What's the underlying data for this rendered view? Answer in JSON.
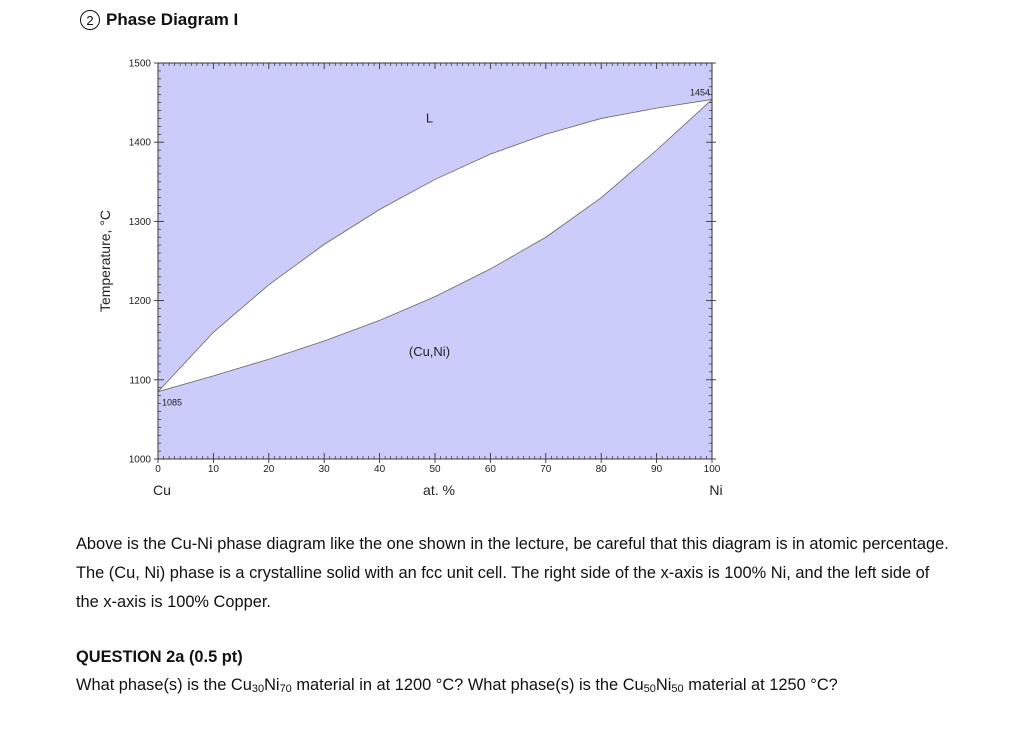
{
  "header": {
    "number": "2",
    "title": "Phase Diagram I"
  },
  "colors": {
    "liquid_region": "#ccccfb",
    "solid_region": "#ccccfb",
    "two_phase_region": "#ffffff",
    "axis": "#333333"
  },
  "chart_data": {
    "type": "area",
    "title": "",
    "xlabel": "at. %",
    "ylabel": "Temperature, °C",
    "x_end_labels": {
      "left": "Cu",
      "right": "Ni"
    },
    "xlim": [
      0,
      100
    ],
    "ylim": [
      1000,
      1500
    ],
    "xticks": [
      0,
      10,
      20,
      30,
      40,
      50,
      60,
      70,
      80,
      90,
      100
    ],
    "yticks": [
      1000,
      1100,
      1200,
      1300,
      1400,
      1500
    ],
    "grid": false,
    "series": [
      {
        "name": "",
        "x": [
          0,
          10,
          20,
          30,
          40,
          50,
          60,
          70,
          80,
          90,
          100
        ],
        "y": [
          1085,
          1160,
          1220,
          1271,
          1315,
          1353,
          1385,
          1410,
          1430,
          1443,
          1454
        ]
      },
      {
        "name": "",
        "x": [
          0,
          10,
          20,
          30,
          40,
          50,
          60,
          70,
          80,
          90,
          100
        ],
        "y": [
          1085,
          1105,
          1126,
          1149,
          1175,
          1205,
          1240,
          1280,
          1330,
          1390,
          1454
        ]
      }
    ],
    "regions": [
      {
        "label": "L",
        "x": 49,
        "y": 1425
      },
      {
        "label": "(Cu,Ni)",
        "x": 49,
        "y": 1130
      }
    ],
    "point_labels": [
      {
        "label": "1085",
        "x": 0,
        "y": 1085
      },
      {
        "label": "1454",
        "x": 100,
        "y": 1454
      }
    ]
  },
  "body": {
    "paragraph": "Above is the Cu-Ni phase diagram like the one shown in the lecture, be careful that this diagram is in atomic percentage.  The (Cu, Ni) phase is a crystalline solid with an fcc unit cell.  The right side of the x-axis is 100% Ni, and the left side of the x-axis is 100% Copper."
  },
  "question": {
    "title": "QUESTION 2a (0.5 pt)",
    "part1": "What phase(s) is the Cu",
    "sub1": "30",
    "part2": "Ni",
    "sub2": "70",
    "part3": " material in at 1200 °C?  What phase(s) is the Cu",
    "sub3": "50",
    "part4": "Ni",
    "sub4": "50",
    "part5": " material at 1250 °C?"
  }
}
